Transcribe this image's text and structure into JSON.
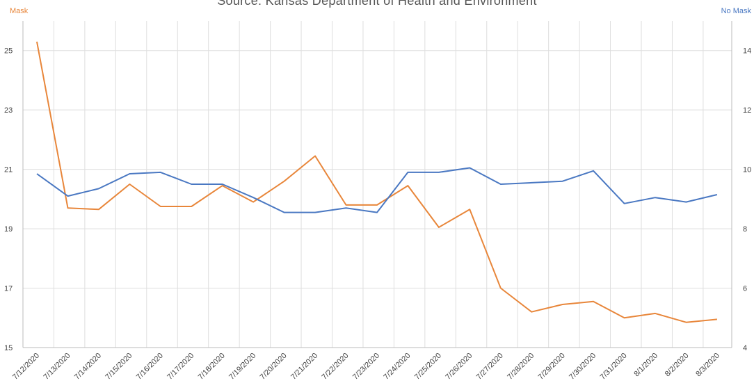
{
  "chart_data": {
    "type": "line",
    "title": "Source: Kansas Department of Health and Environment",
    "y_left_label": "Mask",
    "y_right_label": "No Mask",
    "categories": [
      "7/12/2020",
      "7/13/2020",
      "7/14/2020",
      "7/15/2020",
      "7/16/2020",
      "7/17/2020",
      "7/18/2020",
      "7/19/2020",
      "7/20/2020",
      "7/21/2020",
      "7/22/2020",
      "7/23/2020",
      "7/24/2020",
      "7/25/2020",
      "7/26/2020",
      "7/27/2020",
      "7/28/2020",
      "7/29/2020",
      "7/30/2020",
      "7/31/2020",
      "8/1/2020",
      "8/2/2020",
      "8/3/2020"
    ],
    "y_left_ticks": [
      "15",
      "17",
      "19",
      "21",
      "23",
      "25"
    ],
    "y_right_ticks": [
      "4",
      "6",
      "8",
      "10",
      "12",
      "14"
    ],
    "ylim_left": [
      15,
      26
    ],
    "ylim_right": [
      4,
      15
    ],
    "grid": true,
    "series": [
      {
        "name": "Mask",
        "axis": "left",
        "color": "#e8863a",
        "values": [
          25.3,
          19.7,
          19.65,
          20.5,
          19.75,
          19.75,
          20.45,
          19.9,
          20.6,
          21.45,
          19.8,
          19.8,
          20.45,
          19.05,
          19.65,
          17.0,
          16.2,
          16.45,
          16.55,
          16.0,
          16.15,
          15.85,
          15.95
        ]
      },
      {
        "name": "No Mask",
        "axis": "right",
        "color": "#4a78c2",
        "values": [
          9.85,
          9.1,
          9.35,
          9.85,
          9.9,
          9.5,
          9.5,
          9.05,
          8.55,
          8.55,
          8.7,
          8.55,
          9.9,
          9.9,
          10.05,
          9.5,
          9.55,
          9.6,
          9.95,
          8.85,
          9.05,
          8.9,
          9.15
        ]
      }
    ]
  }
}
